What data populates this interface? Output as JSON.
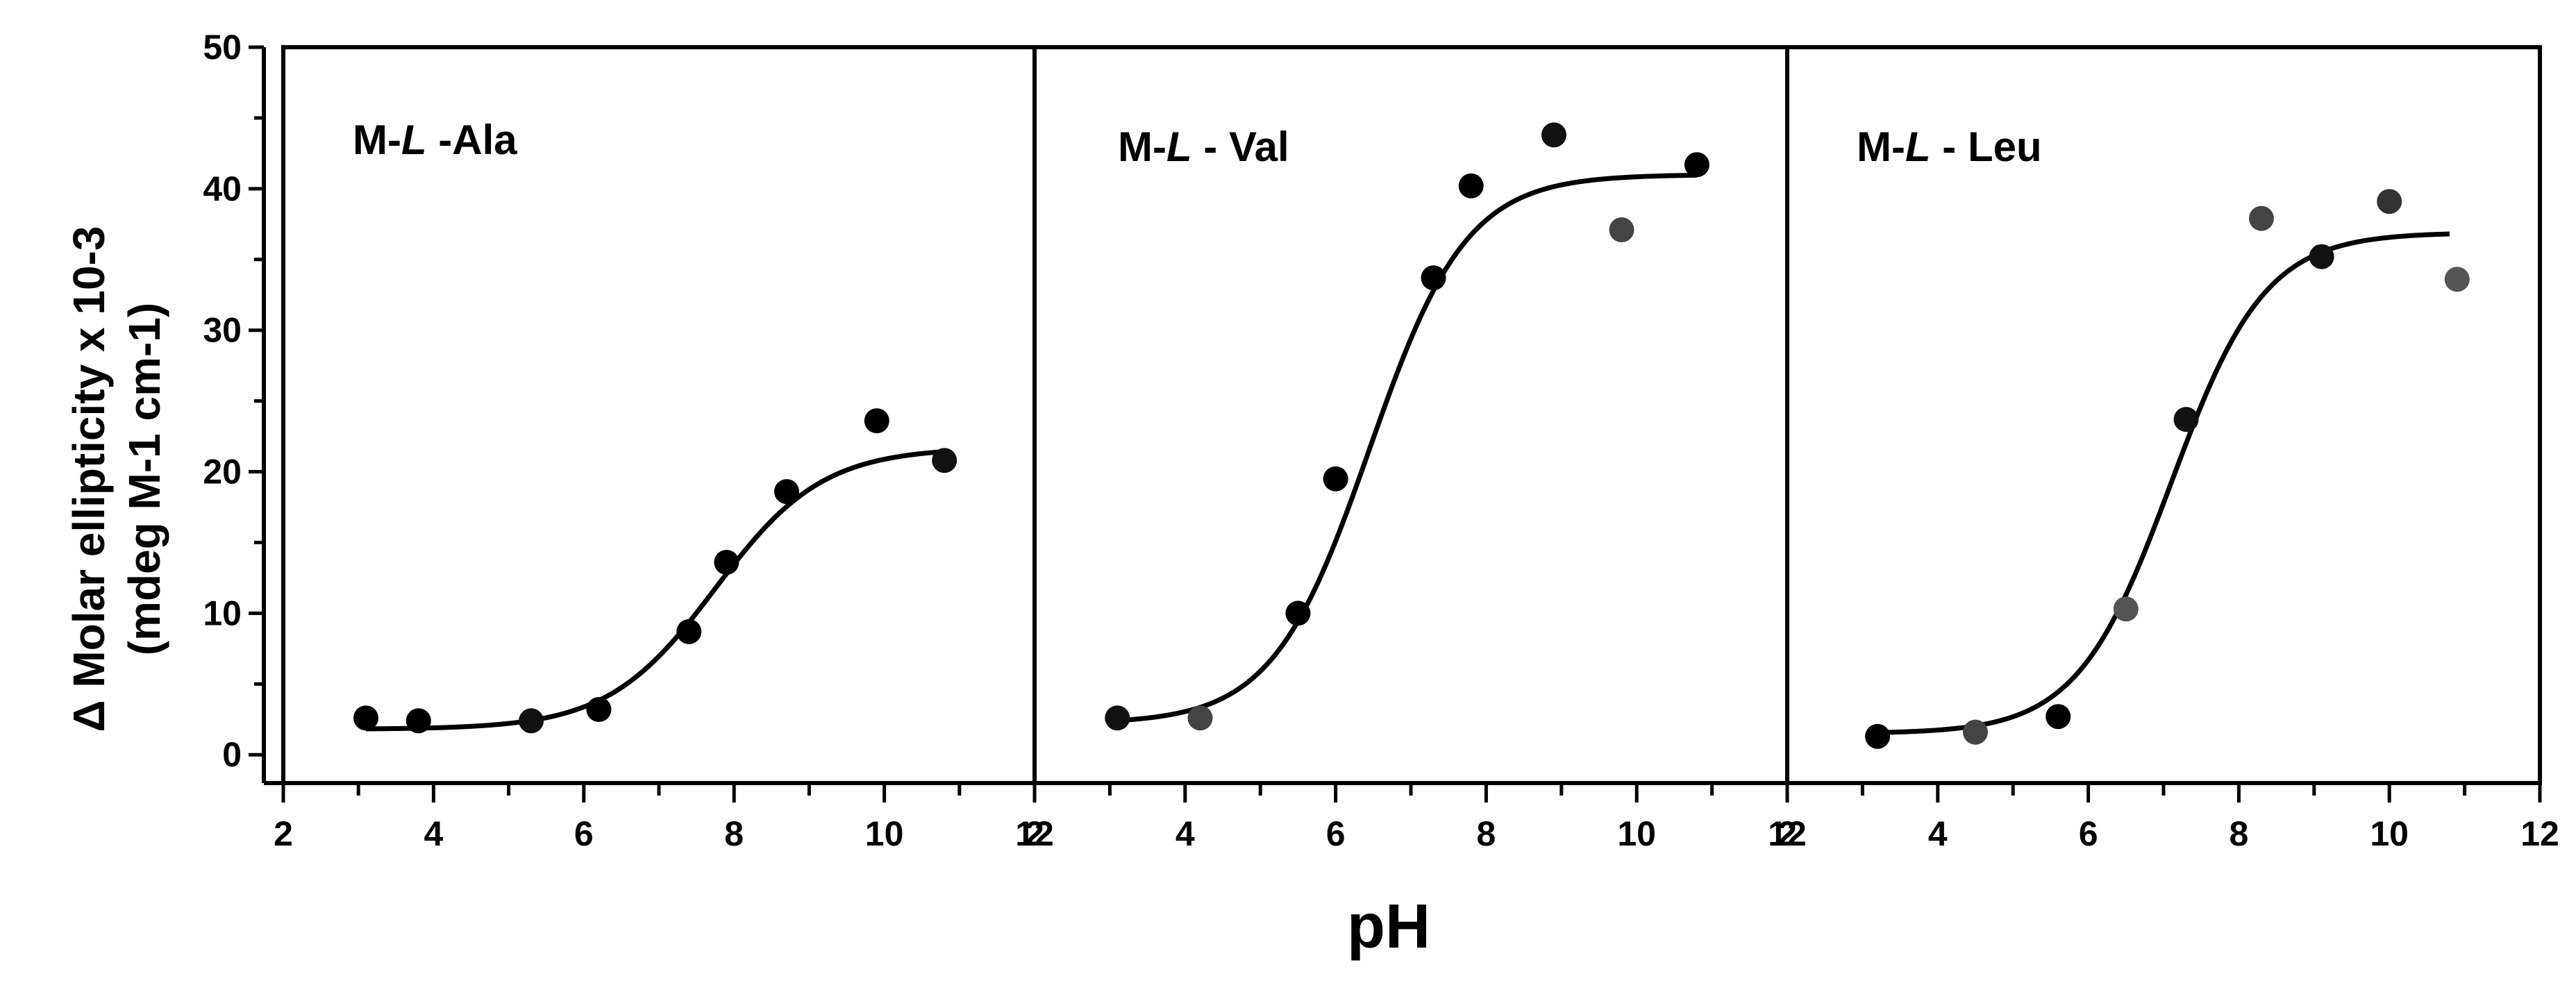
{
  "chart_data": {
    "type": "scatter",
    "ylabel_line1": "Molar ellipticity x 10-3",
    "ylabel_symbol": "Δ",
    "ylabel_line2": "(mdeg M-1 cm-1)",
    "xlabel": "pH",
    "ylim": [
      -2,
      50
    ],
    "y_ticks": [
      0,
      10,
      20,
      30,
      40,
      50
    ],
    "x_ticks": [
      2,
      4,
      6,
      8,
      10,
      12
    ],
    "grid": false,
    "panels": [
      {
        "label_prefix": "M-",
        "label_italic": "L",
        "label_suffix": "-Ala",
        "xlim": [
          2,
          12
        ],
        "points": [
          {
            "x": 3.1,
            "y": 2.6,
            "color": "#000000"
          },
          {
            "x": 3.8,
            "y": 2.4,
            "color": "#000000"
          },
          {
            "x": 5.3,
            "y": 2.4,
            "color": "#111111"
          },
          {
            "x": 6.2,
            "y": 3.2,
            "color": "#000000"
          },
          {
            "x": 7.4,
            "y": 8.7,
            "color": "#000000"
          },
          {
            "x": 7.9,
            "y": 13.6,
            "color": "#000000"
          },
          {
            "x": 8.7,
            "y": 18.6,
            "color": "#000000"
          },
          {
            "x": 9.9,
            "y": 23.6,
            "color": "#000000"
          },
          {
            "x": 10.8,
            "y": 20.8,
            "color": "#111111"
          }
        ],
        "fit": {
          "base": 1.8,
          "top": 21.7,
          "pKa": 7.75,
          "slope": 1.4,
          "x_range": [
            3.1,
            10.8
          ]
        }
      },
      {
        "label_prefix": "M-",
        "label_italic": "L",
        "label_suffix": "- Val",
        "xlim": [
          2,
          12
        ],
        "points": [
          {
            "x": 3.1,
            "y": 2.6,
            "color": "#111111"
          },
          {
            "x": 4.2,
            "y": 2.6,
            "color": "#444444"
          },
          {
            "x": 5.5,
            "y": 10.0,
            "color": "#000000"
          },
          {
            "x": 6.0,
            "y": 19.5,
            "color": "#000000"
          },
          {
            "x": 7.3,
            "y": 33.7,
            "color": "#000000"
          },
          {
            "x": 7.8,
            "y": 40.2,
            "color": "#000000"
          },
          {
            "x": 8.9,
            "y": 43.8,
            "color": "#111111"
          },
          {
            "x": 9.8,
            "y": 37.1,
            "color": "#444444"
          },
          {
            "x": 10.8,
            "y": 41.7,
            "color": "#000000"
          }
        ],
        "fit": {
          "base": 2.2,
          "top": 41.0,
          "pKa": 6.45,
          "slope": 1.55,
          "x_range": [
            3.1,
            10.8
          ]
        }
      },
      {
        "label_prefix": "M-",
        "label_italic": "L",
        "label_suffix": "- Leu",
        "xlim": [
          2,
          12
        ],
        "points": [
          {
            "x": 3.2,
            "y": 1.3,
            "color": "#000000"
          },
          {
            "x": 4.5,
            "y": 1.6,
            "color": "#444444"
          },
          {
            "x": 5.6,
            "y": 2.7,
            "color": "#000000"
          },
          {
            "x": 6.5,
            "y": 10.3,
            "color": "#555555"
          },
          {
            "x": 7.3,
            "y": 23.7,
            "color": "#111111"
          },
          {
            "x": 8.3,
            "y": 37.9,
            "color": "#444444"
          },
          {
            "x": 9.1,
            "y": 35.2,
            "color": "#111111"
          },
          {
            "x": 10.0,
            "y": 39.1,
            "color": "#333333"
          },
          {
            "x": 10.9,
            "y": 33.6,
            "color": "#555555"
          }
        ],
        "fit": {
          "base": 1.5,
          "top": 36.9,
          "pKa": 7.1,
          "slope": 1.6,
          "x_range": [
            3.2,
            10.8
          ]
        }
      }
    ]
  }
}
